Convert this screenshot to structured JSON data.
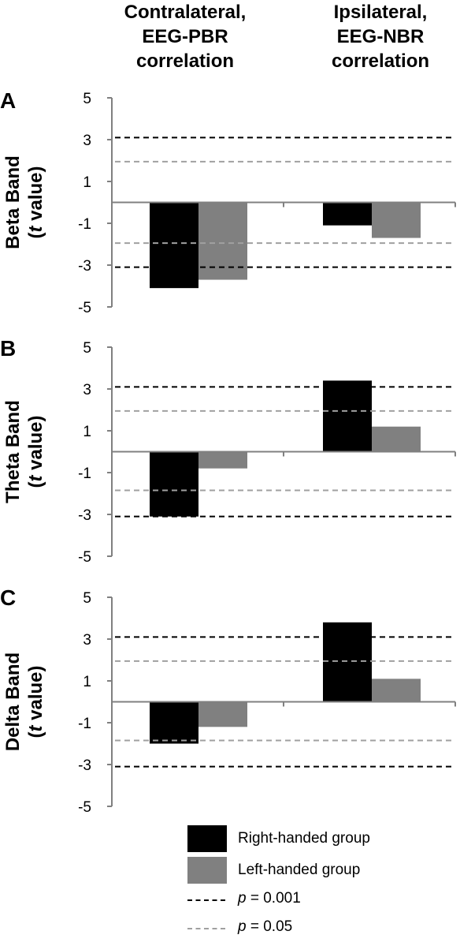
{
  "column_headers": [
    {
      "lines": [
        "Contralateral,",
        "EEG-PBR",
        "correlation"
      ]
    },
    {
      "lines": [
        "Ipsilateral,",
        "EEG-NBR",
        "correlation"
      ]
    }
  ],
  "legend": {
    "right_handed": "Right-handed group",
    "left_handed": "Left-handed group",
    "p001_var": "p",
    "p001_rest": " = 0.001",
    "p005_var": "p",
    "p005_rest": " = 0.05"
  },
  "colors": {
    "right_handed": "#000000",
    "left_handed": "#808080",
    "p001_line": "#000000",
    "p005_line": "#a0a0a0",
    "axis": "#808080"
  },
  "chart_data": [
    {
      "type": "bar",
      "panel": "A",
      "ylabel_line1": "Beta Band",
      "ylabel_line2_var": "t",
      "ylabel_line2_rest": " value",
      "categories": [
        "Contralateral, EEG-PBR correlation",
        "Ipsilateral, EEG-NBR correlation"
      ],
      "series": [
        {
          "name": "Right-handed group",
          "values": [
            -4.1,
            -1.1
          ]
        },
        {
          "name": "Left-handed group",
          "values": [
            -3.7,
            -1.7
          ]
        }
      ],
      "yticks": [
        5,
        3,
        1,
        -1,
        -3,
        -5
      ],
      "tick_labels": [
        "5",
        "3",
        "1",
        "-1",
        "-3",
        "-5"
      ],
      "ylim": [
        -5,
        5
      ],
      "thresholds": {
        "p001": [
          3.1,
          -3.1
        ],
        "p005": [
          1.95,
          -1.95
        ]
      }
    },
    {
      "type": "bar",
      "panel": "B",
      "ylabel_line1": "Theta Band",
      "ylabel_line2_var": "t",
      "ylabel_line2_rest": " value",
      "categories": [
        "Contralateral, EEG-PBR correlation",
        "Ipsilateral, EEG-NBR correlation"
      ],
      "series": [
        {
          "name": "Right-handed group",
          "values": [
            -3.1,
            3.4
          ]
        },
        {
          "name": "Left-handed group",
          "values": [
            -0.8,
            1.2
          ]
        }
      ],
      "yticks": [
        5,
        3,
        1,
        -1,
        -3,
        -5
      ],
      "tick_labels": [
        "5",
        "3",
        "1",
        "-1",
        "-3",
        "-5"
      ],
      "ylim": [
        -5,
        5
      ],
      "thresholds": {
        "p001": [
          3.1,
          -3.1
        ],
        "p005": [
          1.95,
          -1.85
        ]
      }
    },
    {
      "type": "bar",
      "panel": "C",
      "ylabel_line1": "Delta Band",
      "ylabel_line2_var": "t",
      "ylabel_line2_rest": " value",
      "categories": [
        "Contralateral, EEG-PBR correlation",
        "Ipsilateral, EEG-NBR correlation"
      ],
      "series": [
        {
          "name": "Right-handed group",
          "values": [
            -2.0,
            3.8
          ]
        },
        {
          "name": "Left-handed group",
          "values": [
            -1.2,
            1.1
          ]
        }
      ],
      "yticks": [
        5,
        3,
        1,
        -1,
        -3,
        -5
      ],
      "tick_labels": [
        "5",
        "3",
        "1",
        "-1",
        "-3",
        "-5"
      ],
      "ylim": [
        -5,
        5
      ],
      "thresholds": {
        "p001": [
          3.1,
          -3.1
        ],
        "p005": [
          1.95,
          -1.85
        ]
      }
    }
  ]
}
